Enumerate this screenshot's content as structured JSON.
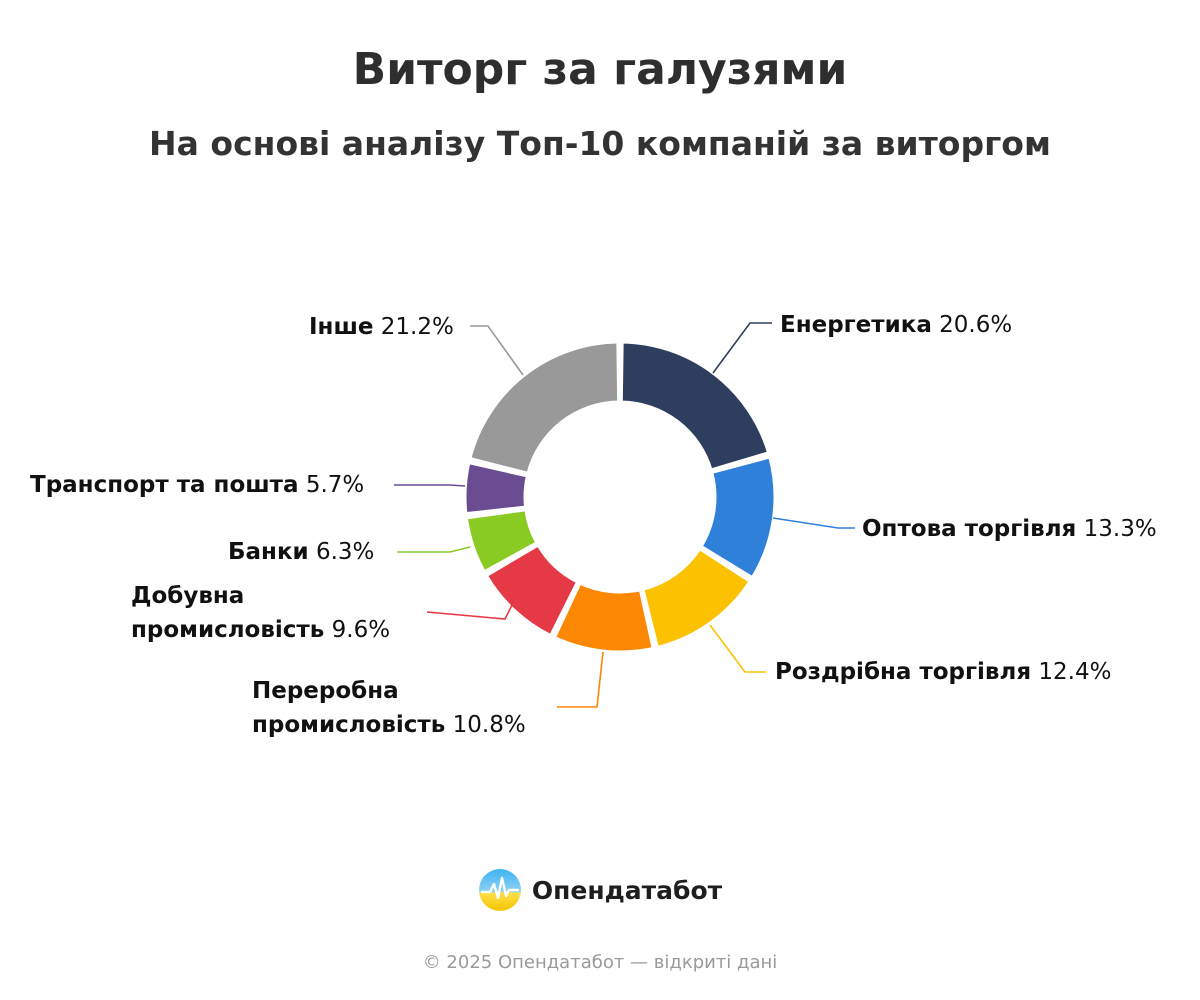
{
  "title": "Виторг за галузями",
  "subtitle": "На основі аналізу Топ-10 компаній за виторгом",
  "chart_data": {
    "type": "pie",
    "donut": true,
    "unit": "%",
    "categories": [
      "Енергетика",
      "Оптова торгівля",
      "Роздрібна торгівля",
      "Переробна промисловість",
      "Добувна промисловість",
      "Банки",
      "Транспорт та пошта",
      "Інше"
    ],
    "values": [
      20.6,
      13.3,
      12.4,
      10.8,
      9.6,
      6.3,
      5.7,
      21.2
    ],
    "colors": [
      "#2e3e5e",
      "#2f80d9",
      "#fcc100",
      "#fb8703",
      "#e63946",
      "#8acb23",
      "#6a4c93",
      "#999999"
    ],
    "value_labels": [
      "20.6%",
      "13.3%",
      "12.4%",
      "10.8%",
      "9.6%",
      "6.3%",
      "5.7%",
      "21.2%"
    ]
  },
  "brand": {
    "name": "Опендатабот",
    "logo_icon": "opendatabot-logo-icon"
  },
  "footer": "© 2025 Опендатабот — відкриті дані"
}
